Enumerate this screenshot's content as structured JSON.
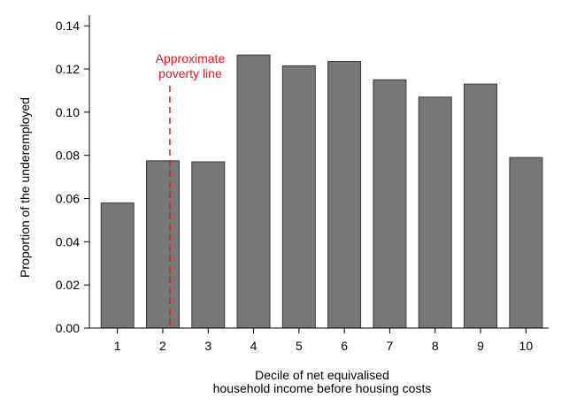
{
  "chart_data": {
    "type": "bar",
    "categories": [
      "1",
      "2",
      "3",
      "4",
      "5",
      "6",
      "7",
      "8",
      "9",
      "10"
    ],
    "values": [
      0.058,
      0.0775,
      0.077,
      0.1265,
      0.1215,
      0.1235,
      0.115,
      0.107,
      0.113,
      0.079
    ],
    "title": "",
    "xlabel_lines": [
      "Decile of net equivalised",
      "household income before housing costs"
    ],
    "ylabel": "Proportion of the underemployed",
    "ylim": [
      0,
      0.145
    ],
    "yticks": [
      0.0,
      0.02,
      0.04,
      0.06,
      0.08,
      0.1,
      0.12,
      0.14
    ],
    "ytick_labels": [
      "0.00",
      "0.02",
      "0.04",
      "0.06",
      "0.08",
      "0.10",
      "0.12",
      "0.14"
    ],
    "grid": false,
    "legend": "none",
    "bar_color": "#777777",
    "bar_edge_color": "#3a3a3a",
    "annotation": {
      "lines": [
        "Approximate",
        "poverty line"
      ],
      "x_category": "2",
      "color": "#e8141c",
      "style": "dashed vertical line"
    }
  }
}
